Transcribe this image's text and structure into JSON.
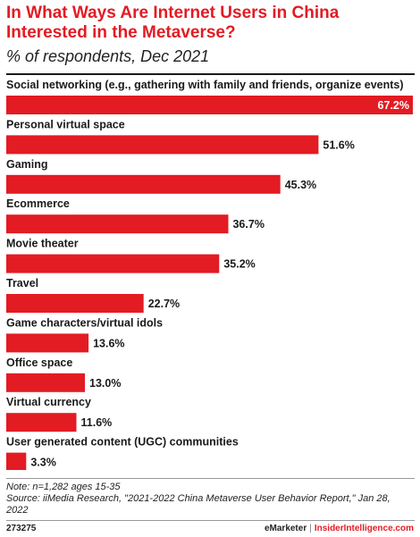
{
  "header": {
    "title": "In What Ways Are Internet Users in China Interested in the Metaverse?",
    "subtitle": "% of respondents, Dec 2021"
  },
  "chart_data": {
    "type": "bar",
    "orientation": "horizontal",
    "title": "In What Ways Are Internet Users in China Interested in the Metaverse?",
    "subtitle": "% of respondents, Dec 2021",
    "categories": [
      "Social networking (e.g., gathering with family and friends, organize events)",
      "Personal virtual space",
      "Gaming",
      "Ecommerce",
      "Movie theater",
      "Travel",
      "Game characters/virtual idols",
      "Office space",
      "Virtual currency",
      "User generated content (UGC) communities"
    ],
    "values": [
      67.2,
      51.6,
      45.3,
      36.7,
      35.2,
      22.7,
      13.6,
      13.0,
      11.6,
      3.3
    ],
    "value_labels": [
      "67.2%",
      "51.6%",
      "45.3%",
      "36.7%",
      "35.2%",
      "22.7%",
      "13.6%",
      "13.0%",
      "11.6%",
      "3.3%"
    ],
    "xlim": [
      0,
      67.2
    ],
    "bar_color": "#e31b23",
    "grid": false,
    "legend": "none"
  },
  "footer": {
    "note": "Note: n=1,282 ages 15-35",
    "source": "Source: iiMedia Research, \"2021-2022 China Metaverse User Behavior Report,\" Jan 28, 2022",
    "chart_id": "273275",
    "brand_left": "eMarketer",
    "brand_sep": "|",
    "brand_right": "InsiderIntelligence.com"
  },
  "colors": {
    "accent": "#e31b23",
    "text": "#1a1a1a"
  }
}
